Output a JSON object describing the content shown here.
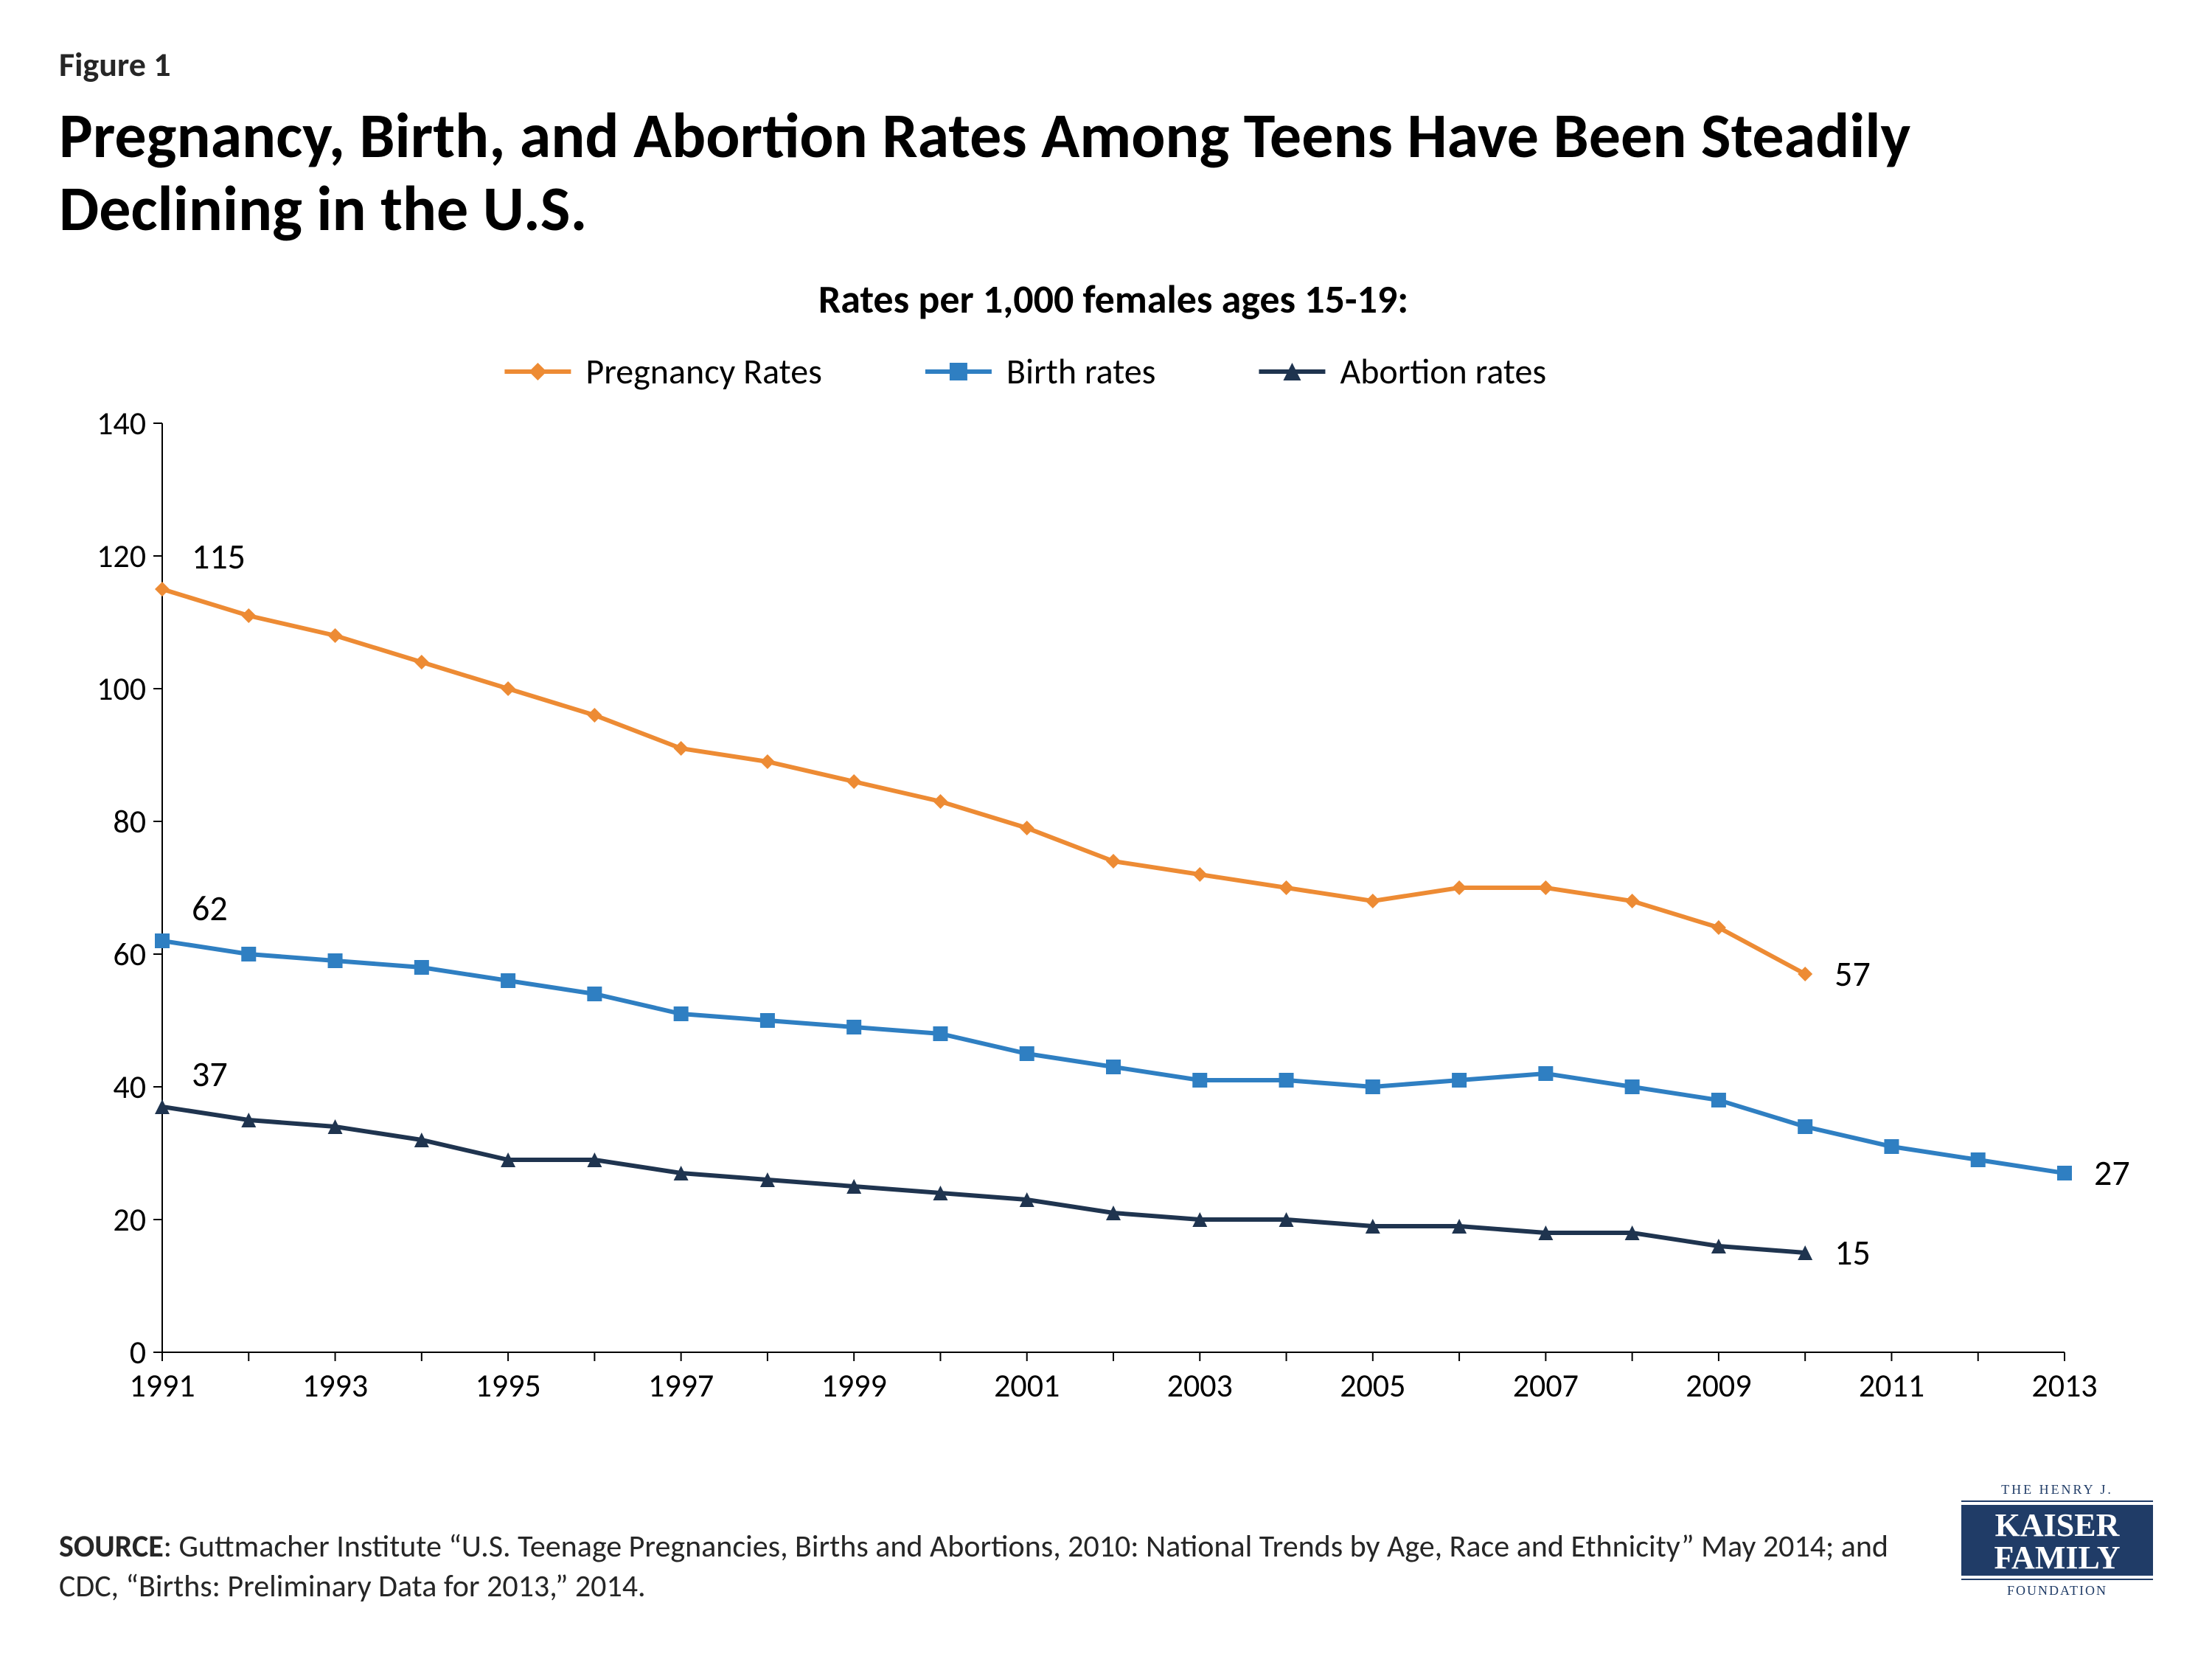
{
  "figure_label": "Figure 1",
  "title": "Pregnancy, Birth, and Abortion Rates Among Teens Have Been Steadily Declining in the U.S.",
  "chart": {
    "type": "line",
    "subtitle": "Rates per 1,000 females ages 15-19:",
    "background_color": "#ffffff",
    "axis_line_color": "#000000",
    "axis_line_width": 2,
    "axis_font_size": 44,
    "subtitle_font_size": 54,
    "legend_font_size": 48,
    "data_label_font_size": 48,
    "line_width": 6,
    "marker_size": 10,
    "x": {
      "min": 1991,
      "max": 2013,
      "tick_step": 2,
      "ticks": [
        1991,
        1993,
        1995,
        1997,
        1999,
        2001,
        2003,
        2005,
        2007,
        2009,
        2011,
        2013
      ]
    },
    "y": {
      "min": 0,
      "max": 140,
      "tick_step": 20,
      "ticks": [
        0,
        20,
        40,
        60,
        80,
        100,
        120,
        140
      ]
    },
    "tickmark_color": "#000000",
    "tickmark_len": 12,
    "series": [
      {
        "name": "Pregnancy Rates",
        "color": "#ed8b34",
        "marker": "diamond",
        "years": [
          1991,
          1992,
          1993,
          1994,
          1995,
          1996,
          1997,
          1998,
          1999,
          2000,
          2001,
          2002,
          2003,
          2004,
          2005,
          2006,
          2007,
          2008,
          2009,
          2010
        ],
        "values": [
          115,
          111,
          108,
          104,
          100,
          96,
          91,
          89,
          86,
          83,
          79,
          74,
          72,
          70,
          68,
          70,
          70,
          68,
          64,
          57
        ],
        "start_label": "115",
        "end_label": "57"
      },
      {
        "name": "Birth rates",
        "color": "#2f7fc2",
        "marker": "square",
        "years": [
          1991,
          1992,
          1993,
          1994,
          1995,
          1996,
          1997,
          1998,
          1999,
          2000,
          2001,
          2002,
          2003,
          2004,
          2005,
          2006,
          2007,
          2008,
          2009,
          2010,
          2011,
          2012,
          2013
        ],
        "values": [
          62,
          60,
          59,
          58,
          56,
          54,
          51,
          50,
          49,
          48,
          45,
          43,
          41,
          41,
          40,
          41,
          42,
          40,
          38,
          34,
          31,
          29,
          27
        ],
        "start_label": "62",
        "end_label": "27"
      },
      {
        "name": "Abortion rates",
        "color": "#1f344f",
        "marker": "triangle",
        "years": [
          1991,
          1992,
          1993,
          1994,
          1995,
          1996,
          1997,
          1998,
          1999,
          2000,
          2001,
          2002,
          2003,
          2004,
          2005,
          2006,
          2007,
          2008,
          2009,
          2010
        ],
        "values": [
          37,
          35,
          34,
          32,
          29,
          29,
          27,
          26,
          25,
          24,
          23,
          21,
          20,
          20,
          19,
          19,
          18,
          18,
          16,
          15
        ],
        "start_label": "37",
        "end_label": "15"
      }
    ]
  },
  "source_prefix": "SOURCE",
  "source_text": ": Guttmacher Institute “U.S. Teenage Pregnancies, Births and Abortions, 2010: National Trends by Age, Race and Ethnicity” May 2014; and CDC, “Births: Preliminary Data for 2013,” 2014.",
  "logo": {
    "top": "THE HENRY J.",
    "line1": "KAISER",
    "line2": "FAMILY",
    "bottom": "FOUNDATION",
    "bg_color": "#203c67",
    "text_color": "#ffffff"
  }
}
